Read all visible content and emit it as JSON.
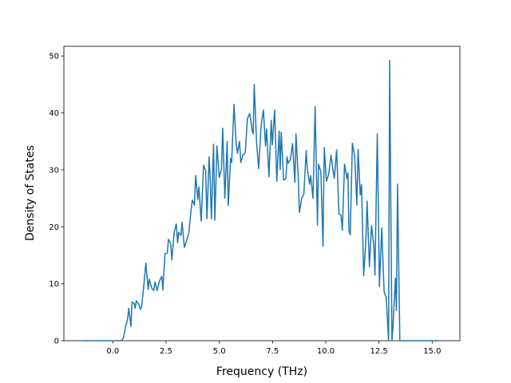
{
  "chart_data": {
    "type": "line",
    "xlabel": "Frequency (THz)",
    "ylabel": "Density of States",
    "color": "#1f77b4",
    "x": [
      -1.4,
      0.4,
      0.5,
      0.6,
      0.7,
      0.75,
      0.85,
      0.9,
      1.0,
      1.05,
      1.1,
      1.2,
      1.3,
      1.35,
      1.45,
      1.55,
      1.66,
      1.71,
      1.82,
      1.92,
      1.98,
      2.08,
      2.19,
      2.3,
      2.35,
      2.45,
      2.56,
      2.61,
      2.72,
      2.77,
      2.88,
      2.98,
      3.04,
      3.09,
      3.2,
      3.25,
      3.36,
      3.46,
      3.57,
      3.67,
      3.73,
      3.83,
      3.89,
      3.99,
      4.04,
      4.15,
      4.26,
      4.36,
      4.42,
      4.52,
      4.57,
      4.63,
      4.73,
      4.79,
      4.89,
      5.0,
      5.1,
      5.16,
      5.26,
      5.37,
      5.42,
      5.53,
      5.58,
      5.69,
      5.79,
      5.85,
      5.95,
      6.01,
      6.11,
      6.22,
      6.32,
      6.43,
      6.54,
      6.59,
      6.64,
      6.75,
      6.85,
      6.96,
      7.07,
      7.17,
      7.22,
      7.33,
      7.44,
      7.49,
      7.6,
      7.7,
      7.81,
      7.86,
      7.91,
      8.02,
      8.13,
      8.18,
      8.23,
      8.34,
      8.44,
      8.55,
      8.6,
      8.71,
      8.76,
      8.87,
      8.97,
      9.08,
      9.13,
      9.24,
      9.29,
      9.4,
      9.5,
      9.61,
      9.66,
      9.77,
      9.87,
      9.93,
      10.03,
      10.14,
      10.25,
      10.3,
      10.4,
      10.51,
      10.62,
      10.72,
      10.78,
      10.88,
      10.99,
      11.04,
      11.09,
      11.15,
      11.25,
      11.36,
      11.46,
      11.52,
      11.62,
      11.68,
      11.78,
      11.89,
      11.94,
      12.05,
      12.15,
      12.26,
      12.31,
      12.42,
      12.47,
      12.52,
      12.63,
      12.74,
      12.84,
      12.95,
      13.0,
      13.11,
      13.16,
      13.27,
      13.32,
      13.37,
      13.48,
      15.3
    ],
    "values": [
      0,
      0,
      0.5,
      2.5,
      4,
      5.7,
      2.5,
      6.8,
      6.5,
      5.7,
      7,
      6.5,
      5.5,
      6,
      9.5,
      13.6,
      9,
      10.8,
      9.3,
      8.8,
      10.3,
      8.8,
      10.5,
      11.3,
      8.9,
      15.3,
      15.4,
      17.8,
      17,
      14.2,
      19,
      20.5,
      17.2,
      19,
      18.5,
      20.8,
      16.4,
      17.5,
      19,
      22.8,
      24.7,
      23.8,
      29,
      24.8,
      27,
      21,
      30.8,
      29.8,
      21.4,
      32.3,
      28.6,
      21.4,
      34.5,
      21.2,
      34.2,
      28.7,
      30,
      37.3,
      25,
      35,
      23.7,
      32,
      31.3,
      41.5,
      34.7,
      32.9,
      35,
      31.3,
      32.6,
      33,
      39,
      39.9,
      37,
      36.3,
      45,
      34.8,
      30.2,
      37.7,
      40.5,
      34.2,
      37.2,
      28.8,
      38.7,
      34.4,
      40.5,
      28,
      36.8,
      30,
      36.6,
      28.2,
      28.5,
      32.3,
      31.2,
      31.8,
      34.6,
      27.8,
      36.3,
      28.5,
      22.5,
      25,
      25.7,
      33.4,
      30.3,
      27.5,
      29,
      25,
      41.1,
      20.3,
      31,
      29.7,
      16.6,
      33.9,
      28,
      29.3,
      32.6,
      31,
      28.5,
      33.5,
      22.3,
      22,
      19.4,
      31,
      28.5,
      29.5,
      19.3,
      18.6,
      34.7,
      32.3,
      23.8,
      33.6,
      25.6,
      27.4,
      11.4,
      18,
      24.5,
      13,
      20.2,
      16.6,
      11.5,
      36.3,
      23,
      9.5,
      19.8,
      8.6,
      7.5,
      0,
      49.2,
      0,
      2.6,
      11,
      5.3,
      27.5,
      0,
      0
    ],
    "xlim": [
      -2.3,
      16.3
    ],
    "ylim": [
      0,
      51.7
    ],
    "xticks": [
      {
        "value": 0,
        "label": "0.0"
      },
      2.5,
      {
        "value": 5,
        "label": "5.0"
      },
      7.5,
      {
        "value": 10,
        "label": "10.0"
      },
      12.5,
      {
        "value": 15,
        "label": "15.0"
      }
    ],
    "yticks": [
      0,
      10,
      20,
      30,
      40,
      50
    ]
  }
}
